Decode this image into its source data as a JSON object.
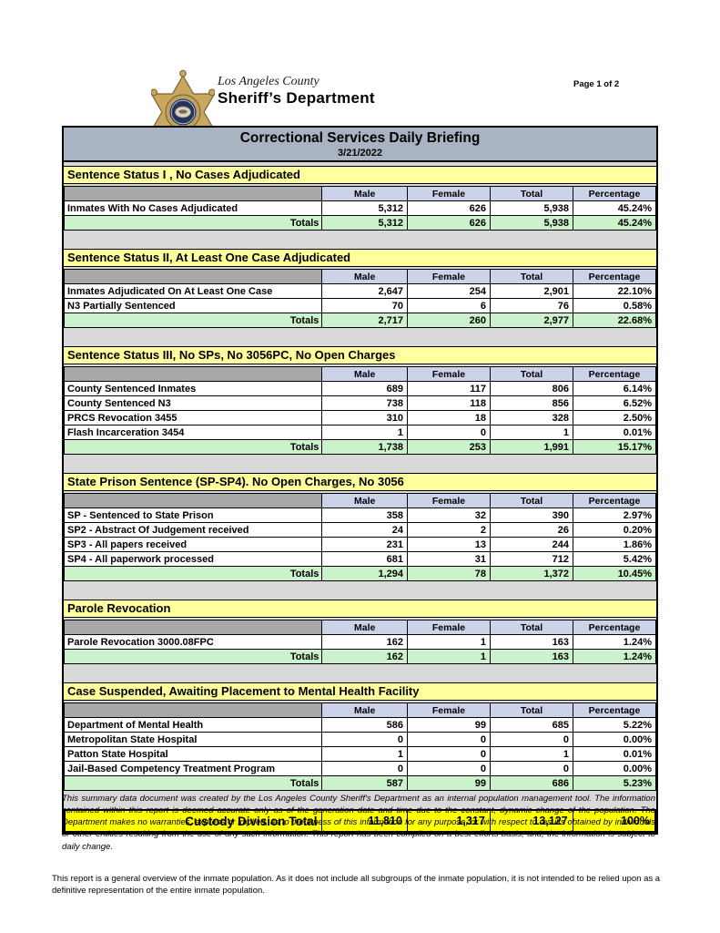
{
  "header": {
    "logo_icon": "sheriff-star-badge-icon",
    "agency_line1": "Los Angeles County",
    "agency_line2": "Sheriff’s Department",
    "page_indicator": "Page 1 of 2"
  },
  "report": {
    "title": "Correctional Services Daily Briefing",
    "date": "3/21/2022",
    "columns": [
      "Male",
      "Female",
      "Total",
      "Percentage"
    ],
    "totals_label": "Totals",
    "sections": [
      {
        "heading": "Sentence Status I , No Cases Adjudicated",
        "rows": [
          {
            "label": "Inmates With No Cases Adjudicated",
            "male": "5,312",
            "female": "626",
            "total": "5,938",
            "percentage": "45.24%"
          }
        ],
        "totals": {
          "male": "5,312",
          "female": "626",
          "total": "5,938",
          "percentage": "45.24%"
        }
      },
      {
        "heading": "Sentence Status II, At Least One Case Adjudicated",
        "rows": [
          {
            "label": "Inmates Adjudicated On At Least One Case",
            "male": "2,647",
            "female": "254",
            "total": "2,901",
            "percentage": "22.10%"
          },
          {
            "label": "N3 Partially Sentenced",
            "male": "70",
            "female": "6",
            "total": "76",
            "percentage": "0.58%"
          }
        ],
        "totals": {
          "male": "2,717",
          "female": "260",
          "total": "2,977",
          "percentage": "22.68%"
        }
      },
      {
        "heading": "Sentence Status III, No SPs, No 3056PC, No Open Charges",
        "rows": [
          {
            "label": "County Sentenced Inmates",
            "male": "689",
            "female": "117",
            "total": "806",
            "percentage": "6.14%"
          },
          {
            "label": "County Sentenced N3",
            "male": "738",
            "female": "118",
            "total": "856",
            "percentage": "6.52%"
          },
          {
            "label": "PRCS Revocation 3455",
            "male": "310",
            "female": "18",
            "total": "328",
            "percentage": "2.50%"
          },
          {
            "label": "Flash Incarceration 3454",
            "male": "1",
            "female": "0",
            "total": "1",
            "percentage": "0.01%"
          }
        ],
        "totals": {
          "male": "1,738",
          "female": "253",
          "total": "1,991",
          "percentage": "15.17%"
        }
      },
      {
        "heading": "State Prison Sentence (SP-SP4). No Open Charges, No 3056",
        "rows": [
          {
            "label": "SP - Sentenced to State Prison",
            "male": "358",
            "female": "32",
            "total": "390",
            "percentage": "2.97%"
          },
          {
            "label": "SP2 - Abstract Of Judgement received",
            "male": "24",
            "female": "2",
            "total": "26",
            "percentage": "0.20%"
          },
          {
            "label": "SP3 - All papers received",
            "male": "231",
            "female": "13",
            "total": "244",
            "percentage": "1.86%"
          },
          {
            "label": "SP4 - All paperwork processed",
            "male": "681",
            "female": "31",
            "total": "712",
            "percentage": "5.42%"
          }
        ],
        "totals": {
          "male": "1,294",
          "female": "78",
          "total": "1,372",
          "percentage": "10.45%"
        }
      },
      {
        "heading": "Parole Revocation",
        "rows": [
          {
            "label": "Parole Revocation 3000.08FPC",
            "male": "162",
            "female": "1",
            "total": "163",
            "percentage": "1.24%"
          }
        ],
        "totals": {
          "male": "162",
          "female": "1",
          "total": "163",
          "percentage": "1.24%"
        }
      },
      {
        "heading": "Case Suspended, Awaiting Placement to Mental Health Facility",
        "rows": [
          {
            "label": "Department of Mental Health",
            "male": "586",
            "female": "99",
            "total": "685",
            "percentage": "5.22%"
          },
          {
            "label": "Metropolitan State Hospital",
            "male": "0",
            "female": "0",
            "total": "0",
            "percentage": "0.00%"
          },
          {
            "label": "Patton State Hospital",
            "male": "1",
            "female": "0",
            "total": "1",
            "percentage": "0.01%"
          },
          {
            "label": "Jail-Based Competency Treatment Program",
            "male": "0",
            "female": "0",
            "total": "0",
            "percentage": "0.00%"
          }
        ],
        "totals": {
          "male": "587",
          "female": "99",
          "total": "686",
          "percentage": "5.23%"
        }
      }
    ],
    "grand_total": {
      "label": "Custody Division Total",
      "male": "11,810",
      "female": "1,317",
      "total": "13,127",
      "percentage": "100%"
    }
  },
  "footer": {
    "disclaimer": "This summary data document was created by the Los Angeles County Sheriff's Department as an internal population management tool.  The information contained within this report is deemed accurate only as of the generation date and time due to the constant, dynamic change of the population.  The Department makes no warranties, express or implied, as to the fitness of this information for any purpose, or with respect to results obtained by individuals or other entities resulting from the use of any such information.  This report has been compiled on a best efforts basis, and, the information is subject to daily change.",
    "scope_note": "This report is a general overview of the inmate population.  As it does not include all subgroups of the inmate population, it is not intended to be relied upon as a definitive representation of the entire inmate population."
  },
  "colors": {
    "title_bar": "#A9B3C2",
    "section_yellow": "#FFFF9E",
    "header_lavender": "#CCD3E8",
    "header_gray": "#A8A8A8",
    "totals_green": "#CCF2CC",
    "grand_yellow": "#FFFF00",
    "gap_gray": "#D9D9D9"
  }
}
